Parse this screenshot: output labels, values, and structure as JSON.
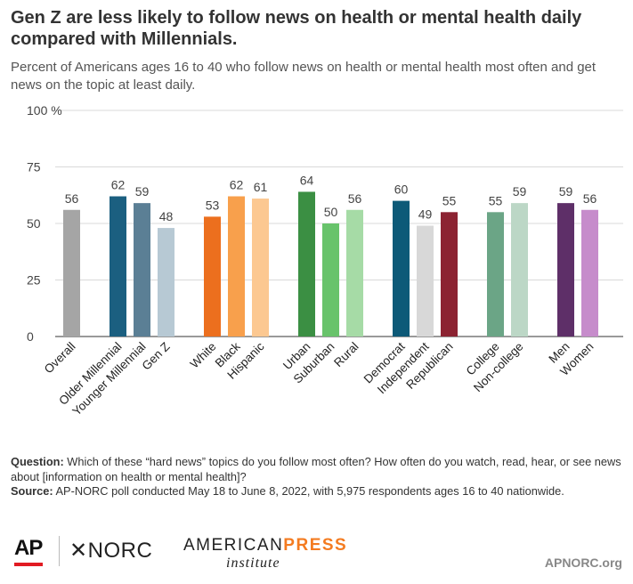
{
  "title": "Gen Z are less likely to follow news on health or mental health daily compared with Millennials.",
  "subtitle": "Percent of Americans ages 16 to 40 who follow news on health or mental health most often and get news on the topic at least daily.",
  "chart_data": {
    "type": "bar",
    "ylim": [
      0,
      100
    ],
    "yticks": [
      "100 %",
      "75",
      "50",
      "25",
      "0"
    ],
    "grid": true,
    "groups": [
      {
        "bars": [
          {
            "label": "Overall",
            "value": 56,
            "color": "#a5a5a5"
          }
        ]
      },
      {
        "bars": [
          {
            "label": "Older Millennial",
            "value": 62,
            "color": "#1b5f80"
          },
          {
            "label": "Younger Millennial",
            "value": 59,
            "color": "#5b7f95"
          },
          {
            "label": "Gen Z",
            "value": 48,
            "color": "#b7c9d4"
          }
        ]
      },
      {
        "bars": [
          {
            "label": "White",
            "value": 53,
            "color": "#ec6f1e"
          },
          {
            "label": "Black",
            "value": 62,
            "color": "#f8a04c"
          },
          {
            "label": "Hispanic",
            "value": 61,
            "color": "#fcc891"
          }
        ]
      },
      {
        "bars": [
          {
            "label": "Urban",
            "value": 64,
            "color": "#3b8f43"
          },
          {
            "label": "Suburban",
            "value": 50,
            "color": "#68c36b"
          },
          {
            "label": "Rural",
            "value": 56,
            "color": "#a6dba6"
          }
        ]
      },
      {
        "bars": [
          {
            "label": "Democrat",
            "value": 60,
            "color": "#0d5a78"
          },
          {
            "label": "Independent",
            "value": 49,
            "color": "#d8d8d8"
          },
          {
            "label": "Republican",
            "value": 55,
            "color": "#8c2332"
          }
        ]
      },
      {
        "bars": [
          {
            "label": "College",
            "value": 55,
            "color": "#6ba586"
          },
          {
            "label": "Non-college",
            "value": 59,
            "color": "#bcd7c6"
          }
        ]
      },
      {
        "bars": [
          {
            "label": "Men",
            "value": 59,
            "color": "#5e2f68"
          },
          {
            "label": "Women",
            "value": 56,
            "color": "#c68ccb"
          }
        ]
      }
    ]
  },
  "notes": {
    "question_label": "Question:",
    "question_text": "Which of these “hard news” topics do you follow most often? How often do you watch, read, hear, or see news about [information on health or mental health]?",
    "source_label": "Source:",
    "source_text": "AP-NORC poll conducted May 18 to June 8, 2022, with 5,975 respondents ages 16 to 40 nationwide."
  },
  "footer": {
    "ap_logo": "AP",
    "norc_logo": "✕NORC",
    "api_logo_top_a": "AMERICAN",
    "api_logo_top_b": "PRESS",
    "api_logo_bottom": "institute",
    "site": "APNORC.org"
  }
}
